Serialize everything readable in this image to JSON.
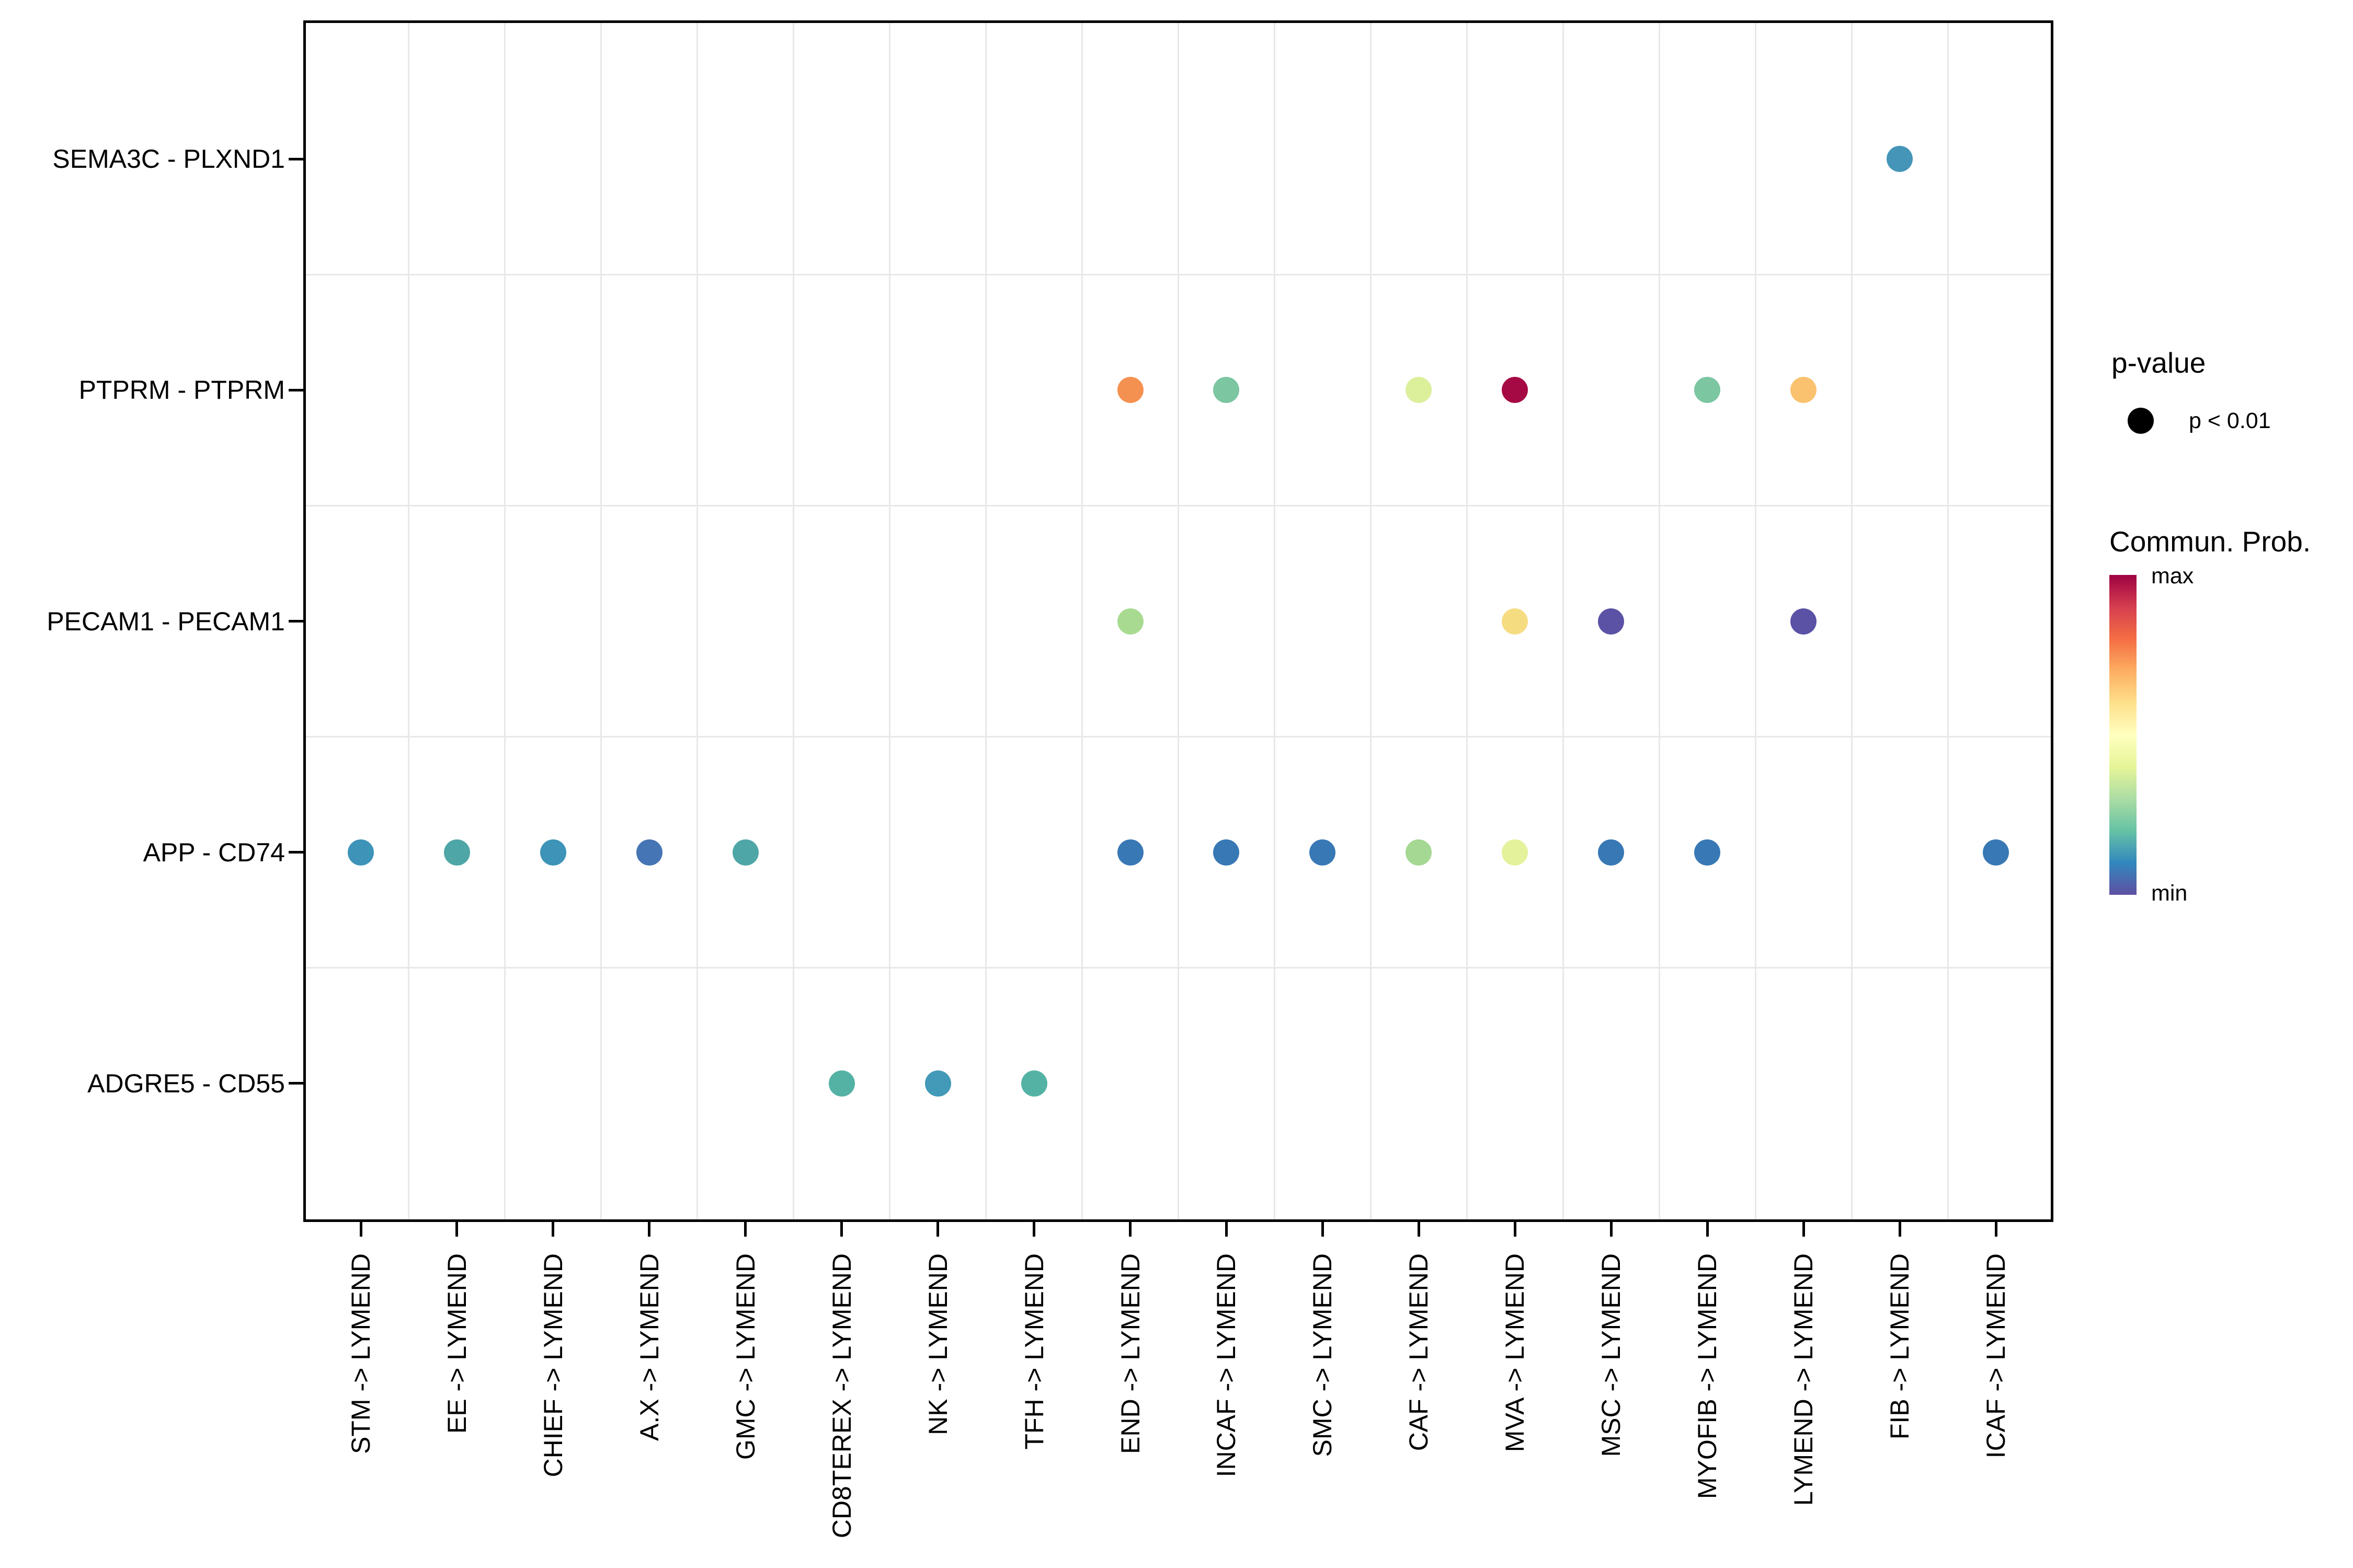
{
  "figure": {
    "background": "#FFFFFF",
    "panel_border_color": "#000000",
    "grid_color": "#E8E8E8",
    "text_color": "#000000"
  },
  "legend": {
    "p_value": {
      "title": "p-value",
      "items": [
        {
          "label": "p < 0.01",
          "dot_color": "#000000"
        }
      ]
    },
    "colorbar": {
      "title": "Commun. Prob.",
      "max_label": "max",
      "min_label": "min",
      "stops_top_to_bottom": [
        "#9E0142",
        "#D53E4F",
        "#F46D43",
        "#FDAE61",
        "#FEE08B",
        "#FFFFBF",
        "#E6F598",
        "#ABDDA4",
        "#66C2A5",
        "#3288BD",
        "#5E4FA2"
      ]
    }
  },
  "chart_data": {
    "type": "scatter",
    "subtype": "dot-plot (ligand-receptor cell-cell communication)",
    "title": "",
    "xlabel": "",
    "ylabel": "",
    "grid": "light vertical and horizontal separators between categories",
    "legend_position": "right",
    "x_categories": [
      "STM -> LYMEND",
      "EE -> LYMEND",
      "CHIEF -> LYMEND",
      "A.X -> LYMEND",
      "GMC -> LYMEND",
      "CD8TEREX -> LYMEND",
      "NK -> LYMEND",
      "TFH -> LYMEND",
      "END -> LYMEND",
      "INCAF -> LYMEND",
      "SMC -> LYMEND",
      "CAF -> LYMEND",
      "MVA -> LYMEND",
      "MSC -> LYMEND",
      "MYOFIB -> LYMEND",
      "LYMEND -> LYMEND",
      "FIB -> LYMEND",
      "ICAF -> LYMEND"
    ],
    "y_categories": [
      "SEMA3C - PLXND1",
      "PTPRM - PTPRM",
      "PECAM1 - PECAM1",
      "APP - CD74",
      "ADGRE5 - CD55"
    ],
    "color_scale": {
      "name": "Spectral (reversed)",
      "min": "min",
      "max": "max"
    },
    "size_encoding": {
      "p < 0.01": "large dot (all shown dots)"
    },
    "points": [
      {
        "x": "FIB -> LYMEND",
        "y": "SEMA3C - PLXND1",
        "color": "#4495B8",
        "value_norm": 0.22,
        "p": "p < 0.01"
      },
      {
        "x": "END -> LYMEND",
        "y": "PTPRM - PTPRM",
        "color": "#F59150",
        "value_norm": 0.82,
        "p": "p < 0.01"
      },
      {
        "x": "INCAF -> LYMEND",
        "y": "PTPRM - PTPRM",
        "color": "#7CC6A2",
        "value_norm": 0.38,
        "p": "p < 0.01"
      },
      {
        "x": "CAF -> LYMEND",
        "y": "PTPRM - PTPRM",
        "color": "#DCEF9B",
        "value_norm": 0.55,
        "p": "p < 0.01"
      },
      {
        "x": "MVA -> LYMEND",
        "y": "PTPRM - PTPRM",
        "color": "#A50A44",
        "value_norm": 1.0,
        "p": "p < 0.01"
      },
      {
        "x": "MYOFIB -> LYMEND",
        "y": "PTPRM - PTPRM",
        "color": "#7CC6A2",
        "value_norm": 0.38,
        "p": "p < 0.01"
      },
      {
        "x": "LYMEND -> LYMEND",
        "y": "PTPRM - PTPRM",
        "color": "#FAC26F",
        "value_norm": 0.72,
        "p": "p < 0.01"
      },
      {
        "x": "END -> LYMEND",
        "y": "PECAM1 - PECAM1",
        "color": "#A8DB91",
        "value_norm": 0.48,
        "p": "p < 0.01"
      },
      {
        "x": "MVA -> LYMEND",
        "y": "PECAM1 - PECAM1",
        "color": "#F6DC81",
        "value_norm": 0.68,
        "p": "p < 0.01"
      },
      {
        "x": "MSC -> LYMEND",
        "y": "PECAM1 - PECAM1",
        "color": "#5B51A5",
        "value_norm": 0.02,
        "p": "p < 0.01"
      },
      {
        "x": "LYMEND -> LYMEND",
        "y": "PECAM1 - PECAM1",
        "color": "#5B51A5",
        "value_norm": 0.02,
        "p": "p < 0.01"
      },
      {
        "x": "STM -> LYMEND",
        "y": "APP - CD74",
        "color": "#3D93B8",
        "value_norm": 0.2,
        "p": "p < 0.01"
      },
      {
        "x": "EE -> LYMEND",
        "y": "APP - CD74",
        "color": "#4FA6A6",
        "value_norm": 0.28,
        "p": "p < 0.01"
      },
      {
        "x": "CHIEF -> LYMEND",
        "y": "APP - CD74",
        "color": "#3D93B8",
        "value_norm": 0.2,
        "p": "p < 0.01"
      },
      {
        "x": "A.X -> LYMEND",
        "y": "APP - CD74",
        "color": "#4575B4",
        "value_norm": 0.14,
        "p": "p < 0.01"
      },
      {
        "x": "GMC -> LYMEND",
        "y": "APP - CD74",
        "color": "#4FA6A6",
        "value_norm": 0.28,
        "p": "p < 0.01"
      },
      {
        "x": "END -> LYMEND",
        "y": "APP - CD74",
        "color": "#3878B5",
        "value_norm": 0.12,
        "p": "p < 0.01"
      },
      {
        "x": "INCAF -> LYMEND",
        "y": "APP - CD74",
        "color": "#3878B5",
        "value_norm": 0.12,
        "p": "p < 0.01"
      },
      {
        "x": "SMC -> LYMEND",
        "y": "APP - CD74",
        "color": "#3878B5",
        "value_norm": 0.12,
        "p": "p < 0.01"
      },
      {
        "x": "CAF -> LYMEND",
        "y": "APP - CD74",
        "color": "#A5D892",
        "value_norm": 0.47,
        "p": "p < 0.01"
      },
      {
        "x": "MVA -> LYMEND",
        "y": "APP - CD74",
        "color": "#E4F29C",
        "value_norm": 0.57,
        "p": "p < 0.01"
      },
      {
        "x": "MSC -> LYMEND",
        "y": "APP - CD74",
        "color": "#3878B5",
        "value_norm": 0.12,
        "p": "p < 0.01"
      },
      {
        "x": "MYOFIB -> LYMEND",
        "y": "APP - CD74",
        "color": "#3878B5",
        "value_norm": 0.12,
        "p": "p < 0.01"
      },
      {
        "x": "ICAF -> LYMEND",
        "y": "APP - CD74",
        "color": "#3878B5",
        "value_norm": 0.12,
        "p": "p < 0.01"
      },
      {
        "x": "CD8TEREX -> LYMEND",
        "y": "ADGRE5 - CD55",
        "color": "#54B2A5",
        "value_norm": 0.3,
        "p": "p < 0.01"
      },
      {
        "x": "NK -> LYMEND",
        "y": "ADGRE5 - CD55",
        "color": "#4299B8",
        "value_norm": 0.22,
        "p": "p < 0.01"
      },
      {
        "x": "TFH -> LYMEND",
        "y": "ADGRE5 - CD55",
        "color": "#54B2A5",
        "value_norm": 0.3,
        "p": "p < 0.01"
      }
    ]
  }
}
